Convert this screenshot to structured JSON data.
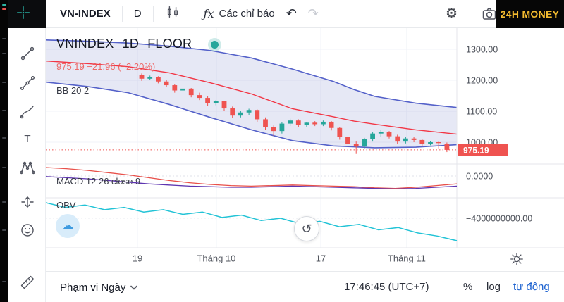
{
  "topbar": {
    "symbol": "VN-INDEX",
    "interval": "D",
    "fx": "ƒx",
    "indicators_label": "Các chỉ báo",
    "undo": "↶",
    "redo": "↷",
    "gear": "⚙",
    "brand": "24H MONEY"
  },
  "legend": {
    "title": "VNINDEX 1D FLOOR",
    "price_line": "975.19 −21.96 (−2.20%)",
    "bb": "BB 20 2",
    "macd": "MACD 12 26 close 9",
    "obv": "OBV"
  },
  "bottombar": {
    "range": "Phạm vi Ngày",
    "clock": "17:46:45 (UTC+7)",
    "percent": "%",
    "log": "log",
    "auto": "tự động"
  },
  "misc": {
    "refresh": "↺",
    "cloud": "☁"
  },
  "colors": {
    "up": "#26a69a",
    "down": "#ef5350",
    "bb_band": "#5461c9",
    "bb_fill": "rgba(90,101,189,0.15)",
    "bb_mid": "#f23645",
    "macd_line": "#e8504a",
    "macd_signal": "#5e35b1",
    "obv": "#22c3d6",
    "brand_yellow": "#f3ba2f",
    "accent_blue": "#1e63d0",
    "grid": "#f1f3f8",
    "separator": "#e4e6eb"
  },
  "chart_data": {
    "type": "candlestick+indicators",
    "symbol": "VNINDEX",
    "interval": "1D",
    "exchange": "FLOOR",
    "last": {
      "price": 975.19,
      "change": -21.96,
      "change_pct": -2.2
    },
    "y_ticks": [
      1300,
      1200,
      1100,
      1000
    ],
    "macd_zero_label": "0.0000",
    "obv_level_label": "−4000000000.00",
    "x_ticks": [
      {
        "label": "19",
        "t": 0.223
      },
      {
        "label": "Tháng 10",
        "t": 0.415
      },
      {
        "label": "17",
        "t": 0.669
      },
      {
        "label": "Tháng 11",
        "t": 0.878
      }
    ],
    "candles": [
      [
        1218,
        1222,
        1198,
        1205
      ],
      [
        1205,
        1215,
        1200,
        1211
      ],
      [
        1211,
        1213,
        1190,
        1196
      ],
      [
        1196,
        1202,
        1178,
        1184
      ],
      [
        1184,
        1188,
        1160,
        1167
      ],
      [
        1167,
        1178,
        1160,
        1173
      ],
      [
        1173,
        1175,
        1145,
        1152
      ],
      [
        1152,
        1160,
        1136,
        1143
      ],
      [
        1143,
        1149,
        1118,
        1126
      ],
      [
        1126,
        1136,
        1119,
        1132
      ],
      [
        1132,
        1134,
        1102,
        1109
      ],
      [
        1109,
        1115,
        1078,
        1086
      ],
      [
        1086,
        1100,
        1080,
        1096
      ],
      [
        1096,
        1108,
        1088,
        1104
      ],
      [
        1104,
        1106,
        1066,
        1074
      ],
      [
        1074,
        1080,
        1040,
        1048
      ],
      [
        1048,
        1054,
        1020,
        1036
      ],
      [
        1036,
        1064,
        1028,
        1060
      ],
      [
        1060,
        1076,
        1052,
        1070
      ],
      [
        1070,
        1074,
        1048,
        1056
      ],
      [
        1056,
        1066,
        1050,
        1063
      ],
      [
        1063,
        1068,
        1052,
        1058
      ],
      [
        1058,
        1070,
        1052,
        1066
      ],
      [
        1066,
        1068,
        1038,
        1046
      ],
      [
        1046,
        1050,
        1008,
        1016
      ],
      [
        1016,
        1020,
        986,
        994
      ],
      [
        994,
        1002,
        962,
        986
      ],
      [
        986,
        1014,
        980,
        1010
      ],
      [
        1010,
        1032,
        1002,
        1028
      ],
      [
        1028,
        1040,
        1018,
        1034
      ],
      [
        1034,
        1036,
        1012,
        1019
      ],
      [
        1019,
        1024,
        994,
        1002
      ],
      [
        1002,
        1016,
        996,
        1012
      ],
      [
        1012,
        1018,
        1000,
        1007
      ],
      [
        1007,
        1010,
        988,
        995
      ],
      [
        995,
        1004,
        990,
        1000
      ],
      [
        1000,
        1002,
        980,
        997
      ],
      [
        995,
        999,
        968,
        975.19
      ]
    ],
    "bb": {
      "period": 20,
      "stdev": 2,
      "points": [
        [
          0,
          1330,
          1262,
          1194
        ],
        [
          0.1,
          1326,
          1254,
          1180
        ],
        [
          0.2,
          1320,
          1244,
          1160
        ],
        [
          0.3,
          1310,
          1224,
          1122
        ],
        [
          0.4,
          1296,
          1192,
          1080
        ],
        [
          0.5,
          1272,
          1156,
          1040
        ],
        [
          0.6,
          1236,
          1108,
          1005
        ],
        [
          0.7,
          1196,
          1082,
          988
        ],
        [
          0.75,
          1170,
          1068,
          985
        ],
        [
          0.8,
          1148,
          1058,
          982
        ],
        [
          0.9,
          1126,
          1040,
          984
        ],
        [
          1,
          1112,
          1026,
          992
        ]
      ]
    },
    "macd": {
      "fast": 12,
      "slow": 26,
      "source": "close",
      "signal": 9,
      "line": [
        15,
        13,
        10,
        6,
        2,
        -3,
        -8,
        -12,
        -15,
        -17,
        -18,
        -17,
        -16,
        -17,
        -18,
        -19,
        -21,
        -22,
        -20,
        -17,
        -14
      ],
      "signal_line": [
        -1,
        -3,
        -5,
        -8,
        -11,
        -14,
        -16,
        -18,
        -19,
        -20,
        -20,
        -19,
        -18,
        -19,
        -20,
        -21,
        -22,
        -23,
        -22,
        -20,
        -18
      ]
    },
    "obv_unit": "billions",
    "obv": [
      -2.0,
      -2.6,
      -2.3,
      -2.9,
      -2.6,
      -3.2,
      -2.9,
      -3.5,
      -3.2,
      -3.9,
      -3.6,
      -4.3,
      -4.0,
      -4.7,
      -4.4,
      -5.1,
      -4.8,
      -5.5,
      -5.2,
      -5.9,
      -6.3,
      -6.9
    ]
  }
}
